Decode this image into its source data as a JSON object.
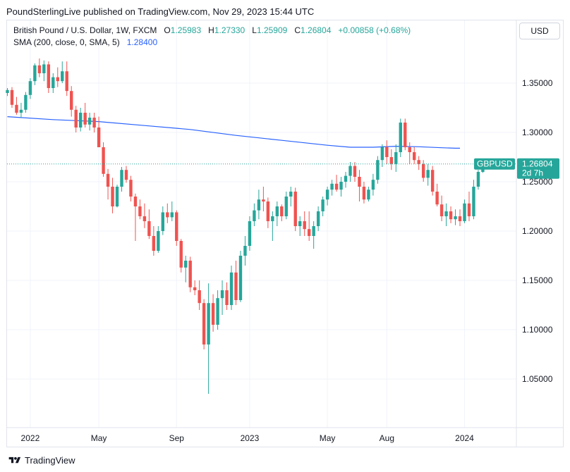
{
  "header": {
    "publisher_text": "PoundSterlingLive published on TradingView.com, Nov 29, 2023 15:44 UTC"
  },
  "legend": {
    "symbol": "British Pound / U.S. Dollar, 1W, FXCM",
    "open_label": "O",
    "open": "1.25983",
    "high_label": "H",
    "high": "1.27330",
    "low_label": "L",
    "low": "1.25909",
    "close_label": "C",
    "close": "1.26804",
    "change": "+0.00858 (+0.68%)",
    "sma_label": "SMA (200, close, 0, SMA, 5)",
    "sma_value": "1.28400"
  },
  "currency_button": "USD",
  "price_tag": {
    "symbol": "GBPUSD",
    "price": "1.26804",
    "countdown": "2d 7h"
  },
  "footer": {
    "brand": "TradingView"
  },
  "colors": {
    "up": "#26a69a",
    "down": "#ef5350",
    "sma": "#2962ff",
    "price_line": "#26a69a"
  },
  "chart_data": {
    "type": "candlestick",
    "interval": "1W",
    "y_ticks": [
      "1.05000",
      "1.10000",
      "1.15000",
      "1.20000",
      "1.25000",
      "1.30000",
      "1.35000"
    ],
    "ylim": [
      1.025,
      1.385
    ],
    "x_ticks": [
      {
        "label": "2022",
        "index": 5
      },
      {
        "label": "May",
        "index": 20
      },
      {
        "label": "Sep",
        "index": 37
      },
      {
        "label": "2023",
        "index": 53
      },
      {
        "label": "May",
        "index": 70
      },
      {
        "label": "Aug",
        "index": 83
      },
      {
        "label": "2024",
        "index": 100
      }
    ],
    "last_price": 1.26804,
    "candles": [
      [
        1.34,
        1.345,
        1.337,
        1.343
      ],
      [
        1.343,
        1.346,
        1.325,
        1.328
      ],
      [
        1.328,
        1.336,
        1.318,
        1.32
      ],
      [
        1.32,
        1.33,
        1.315,
        1.323
      ],
      [
        1.323,
        1.341,
        1.32,
        1.338
      ],
      [
        1.338,
        1.355,
        1.334,
        1.352
      ],
      [
        1.352,
        1.37,
        1.348,
        1.368
      ],
      [
        1.368,
        1.375,
        1.356,
        1.36
      ],
      [
        1.36,
        1.373,
        1.352,
        1.369
      ],
      [
        1.369,
        1.372,
        1.34,
        1.345
      ],
      [
        1.345,
        1.36,
        1.34,
        1.356
      ],
      [
        1.356,
        1.366,
        1.346,
        1.352
      ],
      [
        1.352,
        1.372,
        1.35,
        1.362
      ],
      [
        1.362,
        1.372,
        1.337,
        1.342
      ],
      [
        1.342,
        1.347,
        1.316,
        1.323
      ],
      [
        1.323,
        1.327,
        1.3,
        1.305
      ],
      [
        1.305,
        1.325,
        1.301,
        1.32
      ],
      [
        1.32,
        1.33,
        1.305,
        1.308
      ],
      [
        1.308,
        1.32,
        1.302,
        1.315
      ],
      [
        1.315,
        1.32,
        1.3,
        1.305
      ],
      [
        1.305,
        1.316,
        1.285,
        1.285
      ],
      [
        1.285,
        1.29,
        1.255,
        1.258
      ],
      [
        1.258,
        1.263,
        1.232,
        1.245
      ],
      [
        1.245,
        1.254,
        1.218,
        1.225
      ],
      [
        1.225,
        1.247,
        1.224,
        1.245
      ],
      [
        1.245,
        1.265,
        1.24,
        1.262
      ],
      [
        1.262,
        1.266,
        1.249,
        1.252
      ],
      [
        1.252,
        1.256,
        1.23,
        1.235
      ],
      [
        1.235,
        1.238,
        1.19,
        1.225
      ],
      [
        1.225,
        1.232,
        1.212,
        1.215
      ],
      [
        1.215,
        1.228,
        1.203,
        1.21
      ],
      [
        1.21,
        1.222,
        1.192,
        1.195
      ],
      [
        1.195,
        1.205,
        1.175,
        1.18
      ],
      [
        1.18,
        1.205,
        1.178,
        1.2
      ],
      [
        1.2,
        1.225,
        1.196,
        1.219
      ],
      [
        1.219,
        1.228,
        1.208,
        1.214
      ],
      [
        1.214,
        1.23,
        1.21,
        1.219
      ],
      [
        1.219,
        1.221,
        1.185,
        1.19
      ],
      [
        1.19,
        1.192,
        1.158,
        1.163
      ],
      [
        1.163,
        1.175,
        1.148,
        1.17
      ],
      [
        1.17,
        1.174,
        1.138,
        1.143
      ],
      [
        1.143,
        1.15,
        1.135,
        1.14
      ],
      [
        1.14,
        1.15,
        1.12,
        1.127
      ],
      [
        1.127,
        1.131,
        1.08,
        1.085
      ],
      [
        1.085,
        1.147,
        1.035,
        1.127
      ],
      [
        1.127,
        1.136,
        1.098,
        1.105
      ],
      [
        1.105,
        1.14,
        1.1,
        1.132
      ],
      [
        1.132,
        1.15,
        1.115,
        1.14
      ],
      [
        1.14,
        1.148,
        1.12,
        1.125
      ],
      [
        1.125,
        1.165,
        1.12,
        1.158
      ],
      [
        1.158,
        1.17,
        1.125,
        1.13
      ],
      [
        1.13,
        1.18,
        1.128,
        1.175
      ],
      [
        1.175,
        1.195,
        1.165,
        1.185
      ],
      [
        1.185,
        1.215,
        1.18,
        1.21
      ],
      [
        1.21,
        1.228,
        1.205,
        1.221
      ],
      [
        1.221,
        1.242,
        1.212,
        1.232
      ],
      [
        1.232,
        1.245,
        1.22,
        1.23
      ],
      [
        1.23,
        1.234,
        1.203,
        1.21
      ],
      [
        1.21,
        1.22,
        1.19,
        1.215
      ],
      [
        1.215,
        1.23,
        1.205,
        1.225
      ],
      [
        1.225,
        1.227,
        1.21,
        1.215
      ],
      [
        1.215,
        1.24,
        1.212,
        1.235
      ],
      [
        1.235,
        1.245,
        1.225,
        1.24
      ],
      [
        1.24,
        1.244,
        1.2,
        1.205
      ],
      [
        1.205,
        1.215,
        1.195,
        1.21
      ],
      [
        1.21,
        1.22,
        1.195,
        1.202
      ],
      [
        1.202,
        1.22,
        1.19,
        1.195
      ],
      [
        1.195,
        1.21,
        1.182,
        1.205
      ],
      [
        1.205,
        1.225,
        1.2,
        1.22
      ],
      [
        1.22,
        1.235,
        1.215,
        1.232
      ],
      [
        1.232,
        1.245,
        1.226,
        1.242
      ],
      [
        1.242,
        1.252,
        1.236,
        1.248
      ],
      [
        1.248,
        1.257,
        1.24,
        1.242
      ],
      [
        1.242,
        1.255,
        1.235,
        1.25
      ],
      [
        1.25,
        1.26,
        1.244,
        1.256
      ],
      [
        1.256,
        1.27,
        1.25,
        1.266
      ],
      [
        1.266,
        1.27,
        1.25,
        1.255
      ],
      [
        1.255,
        1.262,
        1.23,
        1.245
      ],
      [
        1.245,
        1.25,
        1.228,
        1.232
      ],
      [
        1.232,
        1.245,
        1.23,
        1.242
      ],
      [
        1.242,
        1.258,
        1.236,
        1.252
      ],
      [
        1.252,
        1.276,
        1.248,
        1.272
      ],
      [
        1.272,
        1.288,
        1.265,
        1.285
      ],
      [
        1.285,
        1.292,
        1.268,
        1.275
      ],
      [
        1.275,
        1.283,
        1.262,
        1.268
      ],
      [
        1.268,
        1.288,
        1.26,
        1.28
      ],
      [
        1.28,
        1.314,
        1.275,
        1.31
      ],
      [
        1.31,
        1.314,
        1.282,
        1.285
      ],
      [
        1.285,
        1.29,
        1.268,
        1.28
      ],
      [
        1.28,
        1.285,
        1.268,
        1.272
      ],
      [
        1.272,
        1.276,
        1.262,
        1.268
      ],
      [
        1.268,
        1.272,
        1.25,
        1.254
      ],
      [
        1.254,
        1.268,
        1.246,
        1.262
      ],
      [
        1.262,
        1.266,
        1.236,
        1.24
      ],
      [
        1.24,
        1.248,
        1.225,
        1.227
      ],
      [
        1.227,
        1.236,
        1.21,
        1.215
      ],
      [
        1.215,
        1.228,
        1.205,
        1.22
      ],
      [
        1.22,
        1.225,
        1.208,
        1.212
      ],
      [
        1.212,
        1.222,
        1.206,
        1.215
      ],
      [
        1.215,
        1.222,
        1.205,
        1.21
      ],
      [
        1.21,
        1.232,
        1.208,
        1.228
      ],
      [
        1.228,
        1.24,
        1.21,
        1.215
      ],
      [
        1.215,
        1.252,
        1.212,
        1.245
      ],
      [
        1.245,
        1.262,
        1.242,
        1.26
      ],
      [
        1.26,
        1.273,
        1.259,
        1.268
      ]
    ],
    "sma": [
      [
        0,
        1.316
      ],
      [
        10,
        1.313
      ],
      [
        20,
        1.311
      ],
      [
        30,
        1.307
      ],
      [
        40,
        1.303
      ],
      [
        50,
        1.297
      ],
      [
        60,
        1.292
      ],
      [
        70,
        1.287
      ],
      [
        75,
        1.285
      ],
      [
        80,
        1.285
      ],
      [
        85,
        1.286
      ],
      [
        90,
        1.2855
      ],
      [
        95,
        1.2845
      ],
      [
        98,
        1.284
      ],
      [
        99,
        1.284
      ]
    ]
  }
}
